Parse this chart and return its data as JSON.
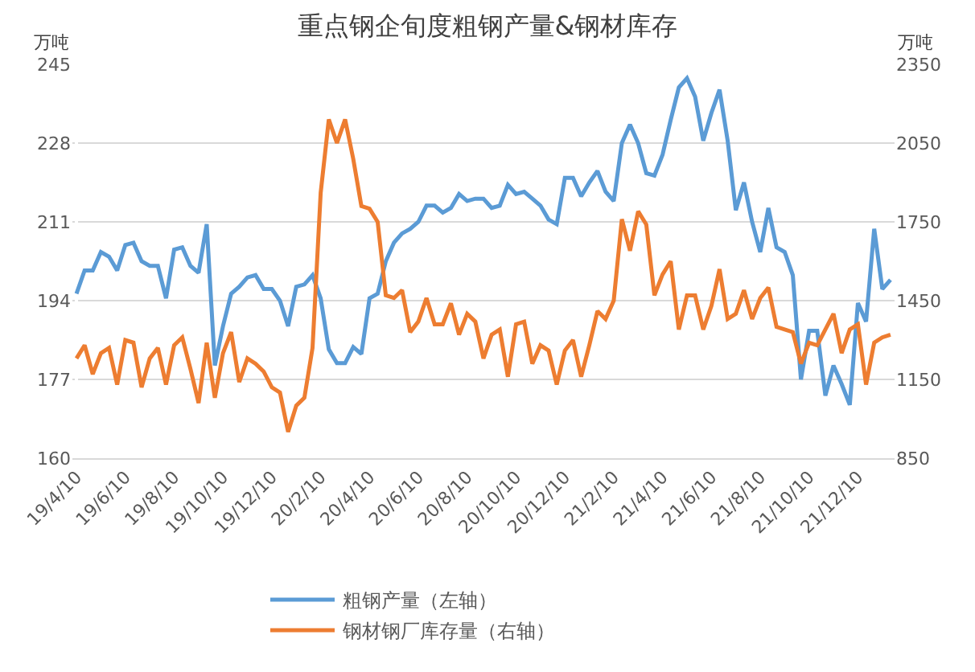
{
  "chart_data": {
    "type": "line",
    "title": "重点钢企旬度粗钢产量&钢材库存",
    "ylabel": "万吨",
    "y2label": "万吨",
    "categories": [
      "19/4/10",
      null,
      null,
      null,
      null,
      null,
      "19/6/10",
      null,
      null,
      null,
      null,
      null,
      "19/8/10",
      null,
      null,
      null,
      null,
      null,
      "19/10/10",
      null,
      null,
      null,
      null,
      null,
      "19/12/10",
      null,
      null,
      null,
      null,
      null,
      "20/2/10",
      null,
      null,
      null,
      null,
      null,
      "20/4/10",
      null,
      null,
      null,
      null,
      null,
      "20/6/10",
      null,
      null,
      null,
      null,
      null,
      "20/8/10",
      null,
      null,
      null,
      null,
      null,
      "20/10/10",
      null,
      null,
      null,
      null,
      null,
      "20/12/10",
      null,
      null,
      null,
      null,
      null,
      "21/2/10",
      null,
      null,
      null,
      null,
      null,
      "21/4/10",
      null,
      null,
      null,
      null,
      null,
      "21/6/10",
      null,
      null,
      null,
      null,
      null,
      "21/8/10",
      null,
      null,
      null,
      null,
      null,
      "21/10/10",
      null,
      null,
      null,
      null,
      null,
      "21/12/10",
      null,
      null,
      null,
      null
    ],
    "series": [
      {
        "name": "粗钢产量（左轴）",
        "color": "#5b9bd5",
        "values": [
          195.5,
          200.5,
          200.5,
          204.5,
          203.5,
          200.5,
          206,
          206.5,
          202.5,
          201.5,
          201.5,
          194.5,
          205,
          205.5,
          201.5,
          200,
          210.5,
          180,
          188.5,
          195.5,
          197,
          199,
          199.5,
          196.5,
          196.5,
          194,
          188.5,
          197,
          197.5,
          199.5,
          194.5,
          183.5,
          180.5,
          180.5,
          184,
          182.5,
          194.5,
          195.5,
          202.5,
          206.5,
          208.5,
          209.5,
          211,
          214.5,
          214.5,
          213,
          214,
          217,
          215.5,
          216,
          216,
          214,
          214.5,
          219,
          217,
          217.5,
          216,
          214.5,
          211.5,
          210.5,
          220.5,
          220.5,
          216.5,
          219.5,
          222,
          217.5,
          215.5,
          228,
          232,
          228,
          221.5,
          221,
          225.5,
          233,
          240,
          242,
          238,
          228.5,
          234.5,
          239.5,
          228.5,
          213.5,
          219.5,
          211,
          204.5,
          214,
          205.5,
          204.5,
          199.5,
          177,
          187.5,
          187.5,
          173.5,
          180,
          176,
          171.5,
          193.5,
          189.5,
          209.5,
          196.5,
          198.5
        ]
      },
      {
        "name": "钢材钢厂库存量（右轴）",
        "color": "#ed7d31",
        "axis": "y2",
        "values": [
          1230,
          1280,
          1170,
          1250,
          1270,
          1130,
          1300,
          1290,
          1120,
          1230,
          1270,
          1130,
          1280,
          1310,
          1190,
          1060,
          1290,
          1080,
          1250,
          1330,
          1140,
          1230,
          1210,
          1180,
          1120,
          1100,
          950,
          1050,
          1080,
          1270,
          1860,
          2140,
          2050,
          2140,
          1990,
          1810,
          1800,
          1750,
          1470,
          1460,
          1490,
          1330,
          1370,
          1460,
          1360,
          1360,
          1440,
          1320,
          1400,
          1370,
          1230,
          1320,
          1340,
          1160,
          1360,
          1370,
          1210,
          1280,
          1260,
          1130,
          1260,
          1300,
          1160,
          1280,
          1410,
          1380,
          1450,
          1760,
          1640,
          1790,
          1740,
          1470,
          1550,
          1600,
          1340,
          1470,
          1470,
          1340,
          1430,
          1570,
          1380,
          1400,
          1490,
          1380,
          1460,
          1500,
          1350,
          1340,
          1330,
          1210,
          1290,
          1280,
          1340,
          1400,
          1250,
          1340,
          1360,
          1130,
          1290,
          1310,
          1320
        ]
      }
    ],
    "ylim": [
      160,
      245
    ],
    "yticks": [
      160,
      177,
      194,
      211,
      228,
      245
    ],
    "y2lim": [
      850,
      2350
    ],
    "y2ticks": [
      850,
      1150,
      1450,
      1750,
      2050,
      2350
    ],
    "grid": "y",
    "legend": "bottom",
    "marker": "none",
    "line_style": "solid"
  }
}
